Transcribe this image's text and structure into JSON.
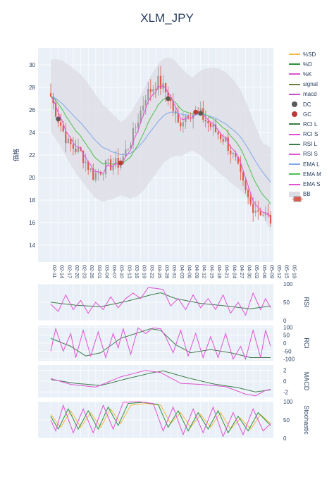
{
  "title": "XLM_JPY",
  "legend": [
    {
      "name": "%SD",
      "color": "#f4b942",
      "kind": "line"
    },
    {
      "name": "%D",
      "color": "#2a8f3a",
      "kind": "line"
    },
    {
      "name": "%K",
      "color": "#e052d3",
      "kind": "line"
    },
    {
      "name": "signal",
      "color": "#6b7f3f",
      "kind": "line"
    },
    {
      "name": "macd",
      "color": "#c84fc8",
      "kind": "line"
    },
    {
      "name": "DC",
      "color": "#5a5a5a",
      "kind": "dot"
    },
    {
      "name": "GC",
      "color": "#b83a3a",
      "kind": "dot"
    },
    {
      "name": "RCI L",
      "color": "#3d7d4a",
      "kind": "line"
    },
    {
      "name": "RCI S",
      "color": "#e052d3",
      "kind": "line"
    },
    {
      "name": "RSI L",
      "color": "#3d7d4a",
      "kind": "line"
    },
    {
      "name": "RSI S",
      "color": "#e052d3",
      "kind": "line"
    },
    {
      "name": "EMA L",
      "color": "#7fa8e8",
      "kind": "line"
    },
    {
      "name": "EMA M",
      "color": "#4fc04f",
      "kind": "line"
    },
    {
      "name": "EMA S",
      "color": "#e052d3",
      "kind": "line"
    },
    {
      "name": "BB",
      "color": "#dcdce4",
      "kind": "band"
    }
  ],
  "colors": {
    "plot_bg": "#eaf0f8",
    "grid": "#ffffff",
    "candle_up": "#9a9a9a",
    "candle_down": "#e05a4a",
    "bb": "#dcdce4",
    "ema_l": "#7fa8e8",
    "ema_m": "#4fc04f",
    "ema_s": "#e052d3",
    "long": "#3d7d4a",
    "short": "#e052d3",
    "dc": "#5a5a5a",
    "gc": "#b83a3a",
    "sd": "#f4b942",
    "d": "#2a8f3a",
    "k": "#e052d3"
  },
  "chart_data": [
    {
      "type": "candlestick",
      "title": "XLM_JPY",
      "ylabel": "価格",
      "ylim": [
        12.5,
        31.5
      ],
      "yticks": [
        14,
        16,
        18,
        20,
        22,
        24,
        26,
        28,
        30
      ],
      "xticks": [
        "02-11",
        "02-14",
        "02-17",
        "02-20",
        "02-23",
        "02-26",
        "03-01",
        "03-04",
        "03-07",
        "03-10",
        "03-13",
        "03-16",
        "03-19",
        "03-22",
        "03-25",
        "03-28",
        "03-31",
        "04-03",
        "04-06",
        "04-09",
        "04-12",
        "04-15",
        "04-18",
        "04-21",
        "04-24",
        "04-27",
        "04-30",
        "05-03",
        "05-06",
        "05-09",
        "05-12",
        "05-15",
        "05-18"
      ],
      "anchors": [
        [
          0,
          27.2
        ],
        [
          3,
          25.2
        ],
        [
          7,
          23.0
        ],
        [
          12,
          22.2
        ],
        [
          17,
          20.2
        ],
        [
          22,
          21.0
        ],
        [
          28,
          21.3
        ],
        [
          33,
          23.8
        ],
        [
          38,
          27.3
        ],
        [
          43,
          28.5
        ],
        [
          47,
          27.3
        ],
        [
          51,
          24.7
        ],
        [
          55,
          25.8
        ],
        [
          60,
          25.6
        ],
        [
          65,
          24.3
        ],
        [
          70,
          23.3
        ],
        [
          74,
          21.4
        ],
        [
          78,
          18.6
        ],
        [
          80,
          17.6
        ],
        [
          84,
          17.0
        ],
        [
          88,
          16.2
        ]
      ],
      "dc_points": [
        [
          3,
          25.2
        ],
        [
          47,
          27.0
        ],
        [
          60,
          25.7
        ]
      ],
      "gc_points": [
        [
          28,
          21.3
        ],
        [
          58,
          25.8
        ]
      ]
    },
    {
      "type": "line",
      "ylabel": "RSI",
      "ylim": [
        0,
        100
      ],
      "yticks": [
        0,
        50,
        100
      ],
      "series": [
        {
          "name": "RSI L",
          "anchors": [
            [
              0,
              50
            ],
            [
              10,
              42
            ],
            [
              20,
              38
            ],
            [
              30,
              52
            ],
            [
              40,
              70
            ],
            [
              44,
              76
            ],
            [
              50,
              60
            ],
            [
              60,
              47
            ],
            [
              70,
              40
            ],
            [
              80,
              32
            ],
            [
              88,
              40
            ]
          ]
        },
        {
          "name": "RSI S",
          "anchors": [
            [
              0,
              45
            ],
            [
              3,
              25
            ],
            [
              6,
              70
            ],
            [
              9,
              30
            ],
            [
              12,
              55
            ],
            [
              15,
              20
            ],
            [
              18,
              50
            ],
            [
              21,
              30
            ],
            [
              24,
              65
            ],
            [
              27,
              35
            ],
            [
              30,
              60
            ],
            [
              33,
              75
            ],
            [
              36,
              60
            ],
            [
              39,
              90
            ],
            [
              42,
              88
            ],
            [
              45,
              85
            ],
            [
              48,
              40
            ],
            [
              51,
              60
            ],
            [
              54,
              30
            ],
            [
              57,
              70
            ],
            [
              60,
              35
            ],
            [
              63,
              60
            ],
            [
              66,
              30
            ],
            [
              69,
              70
            ],
            [
              72,
              20
            ],
            [
              75,
              50
            ],
            [
              78,
              15
            ],
            [
              81,
              75
            ],
            [
              84,
              30
            ],
            [
              86,
              60
            ],
            [
              88,
              35
            ]
          ]
        }
      ]
    },
    {
      "type": "line",
      "ylabel": "RCI",
      "ylim": [
        -110,
        110
      ],
      "yticks": [
        -100,
        -50,
        0,
        50,
        100
      ],
      "series": [
        {
          "name": "RCI L",
          "anchors": [
            [
              0,
              30
            ],
            [
              8,
              -20
            ],
            [
              14,
              -80
            ],
            [
              20,
              -60
            ],
            [
              28,
              30
            ],
            [
              34,
              60
            ],
            [
              40,
              90
            ],
            [
              44,
              80
            ],
            [
              50,
              -10
            ],
            [
              56,
              -60
            ],
            [
              64,
              -40
            ],
            [
              72,
              -60
            ],
            [
              80,
              -90
            ],
            [
              88,
              -90
            ]
          ]
        },
        {
          "name": "RCI S",
          "anchors": [
            [
              0,
              -50
            ],
            [
              2,
              90
            ],
            [
              5,
              -50
            ],
            [
              8,
              60
            ],
            [
              10,
              -90
            ],
            [
              13,
              80
            ],
            [
              16,
              -80
            ],
            [
              19,
              70
            ],
            [
              22,
              -90
            ],
            [
              25,
              60
            ],
            [
              27,
              -30
            ],
            [
              29,
              90
            ],
            [
              32,
              -70
            ],
            [
              35,
              95
            ],
            [
              38,
              60
            ],
            [
              41,
              95
            ],
            [
              44,
              90
            ],
            [
              46,
              40
            ],
            [
              49,
              -60
            ],
            [
              52,
              80
            ],
            [
              55,
              -80
            ],
            [
              58,
              60
            ],
            [
              61,
              -90
            ],
            [
              64,
              40
            ],
            [
              67,
              -90
            ],
            [
              70,
              60
            ],
            [
              73,
              -100
            ],
            [
              76,
              -20
            ],
            [
              78,
              -100
            ],
            [
              81,
              80
            ],
            [
              84,
              -90
            ],
            [
              86,
              80
            ],
            [
              88,
              -20
            ]
          ]
        }
      ]
    },
    {
      "type": "line",
      "ylabel": "MACD",
      "ylim": [
        -3,
        3
      ],
      "yticks": [
        -2,
        0,
        2
      ],
      "series": [
        {
          "name": "signal",
          "anchors": [
            [
              0,
              0.3
            ],
            [
              10,
              -0.4
            ],
            [
              20,
              -0.8
            ],
            [
              30,
              0.4
            ],
            [
              40,
              1.5
            ],
            [
              45,
              1.9
            ],
            [
              55,
              0.6
            ],
            [
              65,
              -0.5
            ],
            [
              75,
              -1.2
            ],
            [
              82,
              -2.0
            ],
            [
              88,
              -1.6
            ]
          ]
        },
        {
          "name": "macd",
          "anchors": [
            [
              0,
              0.5
            ],
            [
              8,
              -0.6
            ],
            [
              18,
              -1.1
            ],
            [
              28,
              0.8
            ],
            [
              38,
              2.0
            ],
            [
              44,
              1.6
            ],
            [
              52,
              -0.4
            ],
            [
              60,
              -0.6
            ],
            [
              70,
              -1.0
            ],
            [
              78,
              -2.4
            ],
            [
              82,
              -2.7
            ],
            [
              86,
              -1.7
            ],
            [
              88,
              -1.5
            ]
          ]
        }
      ]
    },
    {
      "type": "line",
      "ylabel": "Stochastic",
      "ylim": [
        0,
        100
      ],
      "yticks": [
        0,
        50,
        100
      ],
      "series": [
        {
          "name": "%SD",
          "anchors": [
            [
              0,
              65
            ],
            [
              4,
              30
            ],
            [
              8,
              75
            ],
            [
              12,
              30
            ],
            [
              16,
              70
            ],
            [
              20,
              30
            ],
            [
              24,
              80
            ],
            [
              28,
              40
            ],
            [
              32,
              90
            ],
            [
              38,
              95
            ],
            [
              44,
              90
            ],
            [
              48,
              40
            ],
            [
              52,
              70
            ],
            [
              56,
              30
            ],
            [
              60,
              65
            ],
            [
              64,
              30
            ],
            [
              68,
              70
            ],
            [
              72,
              25
            ],
            [
              76,
              55
            ],
            [
              80,
              25
            ],
            [
              84,
              65
            ],
            [
              88,
              40
            ]
          ]
        },
        {
          "name": "%D",
          "anchors": [
            [
              0,
              60
            ],
            [
              3,
              25
            ],
            [
              7,
              80
            ],
            [
              11,
              25
            ],
            [
              15,
              75
            ],
            [
              19,
              25
            ],
            [
              23,
              85
            ],
            [
              27,
              35
            ],
            [
              31,
              95
            ],
            [
              37,
              98
            ],
            [
              43,
              92
            ],
            [
              47,
              30
            ],
            [
              51,
              75
            ],
            [
              55,
              20
            ],
            [
              59,
              70
            ],
            [
              63,
              25
            ],
            [
              67,
              75
            ],
            [
              71,
              15
            ],
            [
              75,
              60
            ],
            [
              79,
              20
            ],
            [
              83,
              70
            ],
            [
              88,
              35
            ]
          ]
        },
        {
          "name": "%K",
          "anchors": [
            [
              0,
              50
            ],
            [
              2,
              20
            ],
            [
              5,
              90
            ],
            [
              9,
              15
            ],
            [
              13,
              80
            ],
            [
              17,
              15
            ],
            [
              21,
              90
            ],
            [
              25,
              25
            ],
            [
              29,
              98
            ],
            [
              35,
              100
            ],
            [
              41,
              95
            ],
            [
              45,
              20
            ],
            [
              49,
              85
            ],
            [
              53,
              10
            ],
            [
              57,
              80
            ],
            [
              61,
              15
            ],
            [
              65,
              85
            ],
            [
              69,
              5
            ],
            [
              73,
              70
            ],
            [
              77,
              10
            ],
            [
              81,
              80
            ],
            [
              85,
              20
            ],
            [
              88,
              40
            ]
          ]
        }
      ]
    }
  ]
}
